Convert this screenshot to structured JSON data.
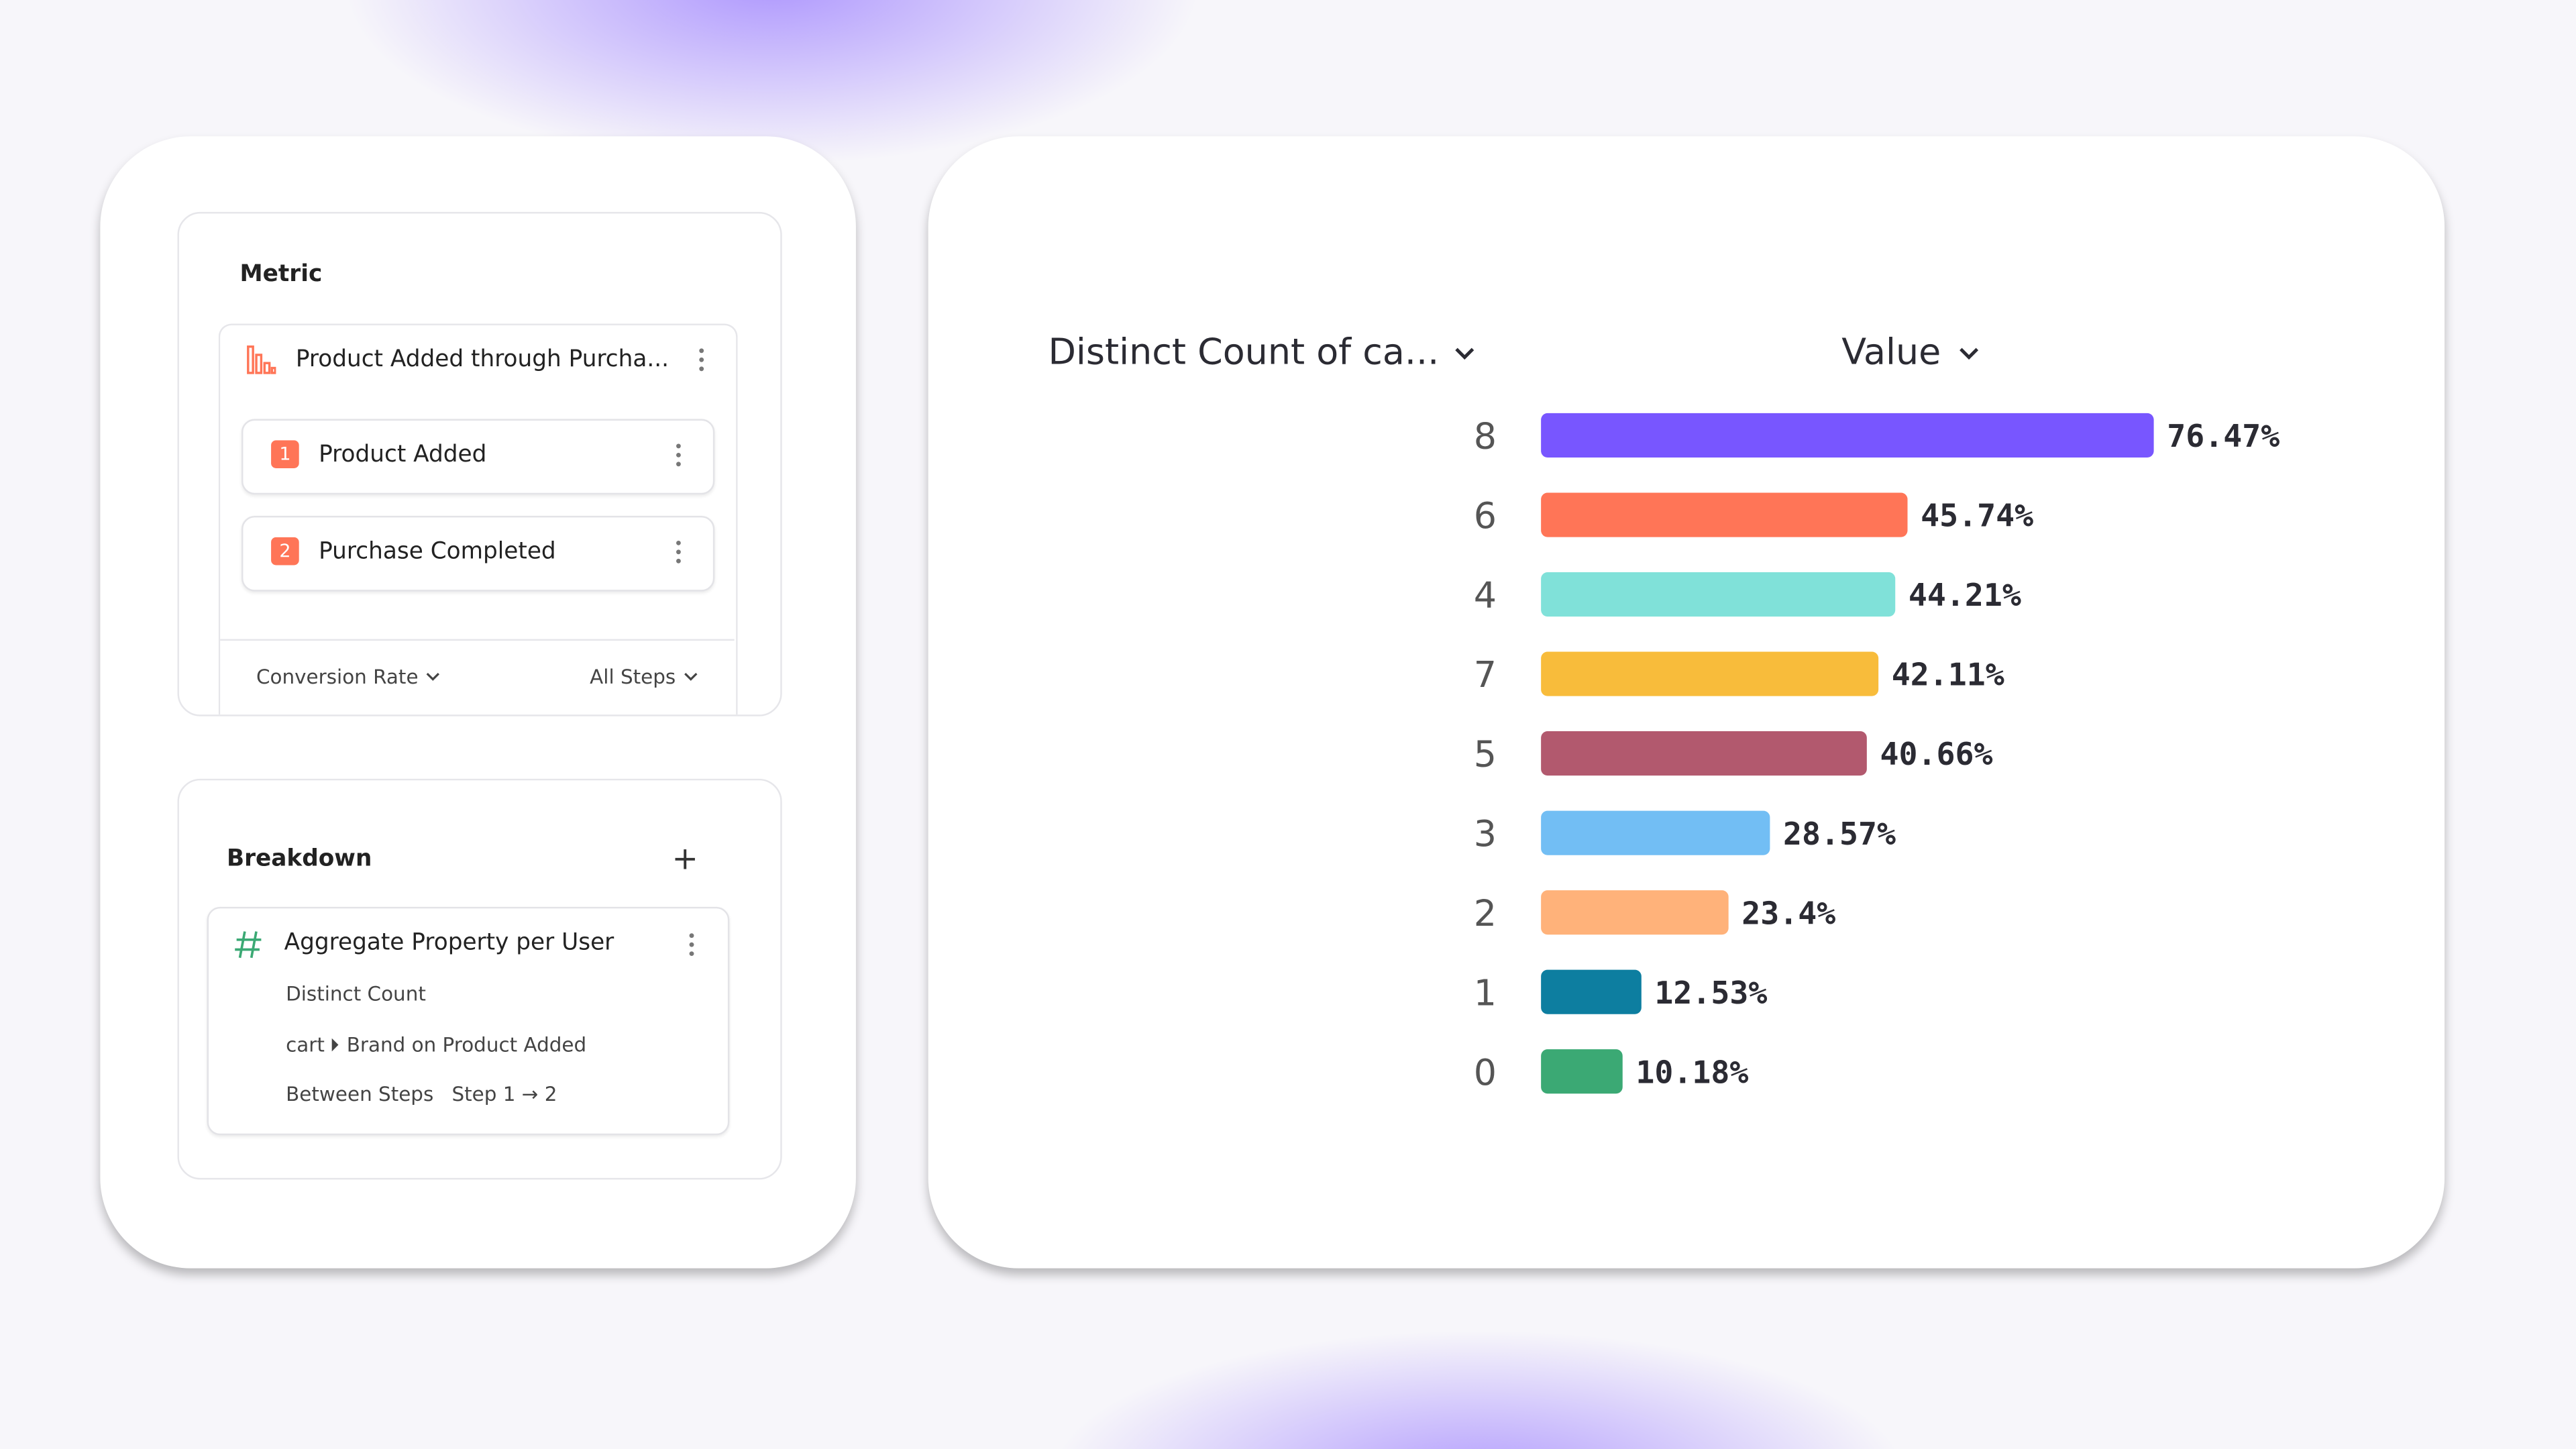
{
  "metric": {
    "title": "Metric",
    "funnel": "Product Added through Purcha...",
    "steps": [
      {
        "number": "1",
        "name": "Product Added"
      },
      {
        "number": "2",
        "name": "Purchase Completed"
      }
    ],
    "measure": "Conversion Rate",
    "range": "All Steps"
  },
  "breakdown": {
    "title": "Breakdown",
    "property": "Aggregate Property per User",
    "aggregation": "Distinct Count",
    "path": [
      "cart",
      "Brand on Product Added"
    ],
    "scope": "Between Steps",
    "steps": "Step 1 → 2"
  },
  "chart_data": {
    "type": "bar",
    "orientation": "horizontal",
    "category_header": "Distinct Count of ca...",
    "value_header": "Value",
    "categories": [
      "8",
      "6",
      "4",
      "7",
      "5",
      "3",
      "2",
      "1",
      "0"
    ],
    "values": [
      76.47,
      45.74,
      44.21,
      42.11,
      40.66,
      28.57,
      23.4,
      12.53,
      10.18
    ],
    "value_labels": [
      "76.47%",
      "45.74%",
      "44.21%",
      "42.11%",
      "40.66%",
      "28.57%",
      "23.4%",
      "12.53%",
      "10.18%"
    ],
    "colors": [
      "#7856ff",
      "#ff7557",
      "#80e1d9",
      "#f8bc3b",
      "#b2596e",
      "#72bef4",
      "#ffb27a",
      "#0d7ea0",
      "#3ba974"
    ]
  }
}
